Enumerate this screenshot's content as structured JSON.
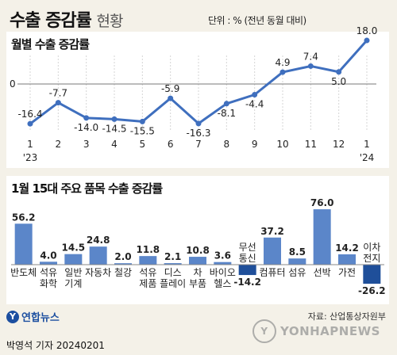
{
  "header": {
    "title": "수출 증감률",
    "title_suffix": "현황",
    "unit": "단위 : % (전년 동월 대비)"
  },
  "section1": {
    "title": "월별 수출 증감률"
  },
  "section2": {
    "title": "1월 15대 주요 품목 수출 증감률"
  },
  "footer": {
    "logo_text": "연합뉴스",
    "logo_mark": "Y",
    "source": "자료: 산업통상자원부",
    "byline": "박영석 기자  20240201",
    "watermark": "YONHAPNEWS",
    "watermark_mark": "Y"
  },
  "colors": {
    "line": "#3f6fbe",
    "bar_positive": "#5b86c9",
    "bar_negative": "#1f4f9a",
    "background": "#f4f1e8"
  },
  "chart_data": [
    {
      "type": "line",
      "title": "월별 수출 증감률",
      "x": [
        "1",
        "2",
        "3",
        "4",
        "5",
        "6",
        "7",
        "8",
        "9",
        "10",
        "11",
        "12",
        "1"
      ],
      "x_sublabels": [
        "'23",
        "",
        "",
        "",
        "",
        "",
        "",
        "",
        "",
        "",
        "",
        "",
        "'24"
      ],
      "values": [
        -16.4,
        -7.7,
        -14.0,
        -14.5,
        -15.5,
        -5.9,
        -16.3,
        -8.1,
        -4.4,
        4.9,
        7.4,
        5.0,
        18.0
      ],
      "value_labels": [
        "-16.4",
        "-7.7",
        "-14.0",
        "-14.5",
        "-15.5",
        "-5.9",
        "-16.3",
        "-8.1",
        "-4.4",
        "4.9",
        "7.4",
        "5.0",
        "18.0"
      ],
      "zero_label": "0",
      "ylim": [
        -17,
        19
      ]
    },
    {
      "type": "bar",
      "title": "1월 15대 주요 품목 수출 증감률",
      "categories": [
        [
          "반도체"
        ],
        [
          "석유",
          "화학"
        ],
        [
          "일반",
          "기계"
        ],
        [
          "자동차"
        ],
        [
          "철강"
        ],
        [
          "석유",
          "제품"
        ],
        [
          "디스",
          "플레이"
        ],
        [
          "차",
          "부품"
        ],
        [
          "바이오",
          "헬스"
        ],
        [
          "무선",
          "통신"
        ],
        [
          "컴퓨터"
        ],
        [
          "섬유"
        ],
        [
          "선박"
        ],
        [
          "가전"
        ],
        [
          "이차",
          "전지"
        ]
      ],
      "values": [
        56.2,
        4.0,
        14.5,
        24.8,
        2.0,
        11.8,
        2.1,
        10.8,
        3.6,
        -14.2,
        37.2,
        8.5,
        76.0,
        14.2,
        -26.2
      ],
      "value_labels": [
        "56.2",
        "4.0",
        "14.5",
        "24.8",
        "2.0",
        "11.8",
        "2.1",
        "10.8",
        "3.6",
        "-14.2",
        "37.2",
        "8.5",
        "76.0",
        "14.2",
        "-26.2"
      ],
      "ylim": [
        -30,
        80
      ]
    }
  ]
}
